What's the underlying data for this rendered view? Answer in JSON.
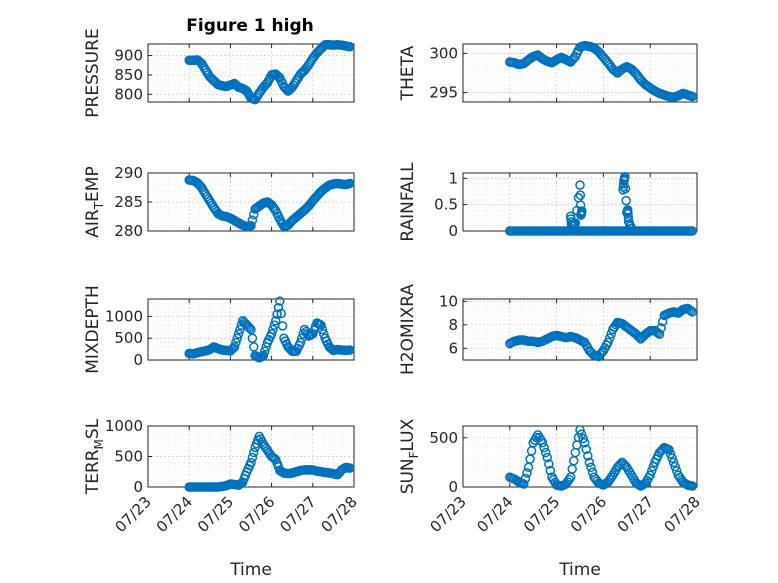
{
  "figure": {
    "title": "Figure 1 high"
  },
  "chart_data": [
    {
      "type": "scatter",
      "ylabel": "PRESSURE",
      "xlim": [
        "07/23",
        "07/28"
      ],
      "ylim": [
        780,
        930
      ],
      "yticks": [
        800,
        850,
        900
      ],
      "color": "#0072BD",
      "x_days": [
        1.0,
        1.1,
        1.2,
        1.3,
        1.4,
        1.5,
        1.6,
        1.7,
        1.8,
        1.9,
        2.0,
        2.1,
        2.2,
        2.3,
        2.4,
        2.5,
        2.6,
        2.7,
        2.8,
        2.9,
        3.0,
        3.1,
        3.2,
        3.3,
        3.4,
        3.5,
        3.6,
        3.7,
        3.8,
        3.9,
        4.0,
        4.1,
        4.2,
        4.3,
        4.4,
        4.5,
        4.6,
        4.7,
        4.8,
        4.9
      ],
      "y": [
        888,
        888,
        889,
        880,
        862,
        845,
        835,
        825,
        822,
        820,
        824,
        828,
        818,
        815,
        808,
        790,
        786,
        803,
        818,
        830,
        850,
        852,
        842,
        820,
        808,
        818,
        835,
        852,
        862,
        876,
        893,
        907,
        918,
        928,
        928,
        927,
        928,
        927,
        925,
        923
      ]
    },
    {
      "type": "scatter",
      "ylabel": "THETA",
      "xlim": [
        "07/23",
        "07/28"
      ],
      "ylim": [
        293.8,
        301.2
      ],
      "yticks": [
        295,
        300
      ],
      "color": "#0072BD",
      "x_days": [
        1.0,
        1.1,
        1.2,
        1.3,
        1.4,
        1.5,
        1.6,
        1.7,
        1.8,
        1.9,
        2.0,
        2.1,
        2.2,
        2.3,
        2.4,
        2.5,
        2.6,
        2.7,
        2.8,
        2.9,
        3.0,
        3.1,
        3.2,
        3.3,
        3.4,
        3.5,
        3.6,
        3.7,
        3.8,
        3.9,
        4.0,
        4.1,
        4.2,
        4.3,
        4.4,
        4.5,
        4.6,
        4.7,
        4.8,
        4.9
      ],
      "y": [
        298.9,
        298.8,
        298.6,
        298.7,
        299.2,
        299.6,
        299.8,
        299.3,
        299.0,
        298.8,
        299.2,
        299.5,
        299.2,
        298.9,
        299.6,
        300.8,
        301.0,
        300.9,
        300.7,
        300.2,
        299.5,
        298.8,
        298.0,
        297.5,
        298.0,
        298.3,
        298.0,
        297.4,
        296.6,
        296.0,
        295.6,
        295.2,
        294.9,
        294.7,
        294.5,
        294.4,
        294.6,
        294.9,
        294.7,
        294.5
      ]
    },
    {
      "type": "scatter",
      "ylabel": "AIR_TEMP",
      "ylabel_main": "AIR",
      "ylabel_sub": "T",
      "ylabel_rest": "EMP",
      "xlim": [
        "07/23",
        "07/28"
      ],
      "ylim": [
        280,
        290
      ],
      "yticks": [
        280,
        285,
        290
      ],
      "color": "#0072BD",
      "x_days": [
        1.0,
        1.1,
        1.2,
        1.3,
        1.4,
        1.5,
        1.6,
        1.7,
        1.8,
        1.9,
        2.0,
        2.1,
        2.2,
        2.3,
        2.4,
        2.5,
        2.6,
        2.7,
        2.8,
        2.9,
        3.0,
        3.1,
        3.2,
        3.3,
        3.4,
        3.5,
        3.6,
        3.7,
        3.8,
        3.9,
        4.0,
        4.1,
        4.2,
        4.3,
        4.4,
        4.5,
        4.6,
        4.7,
        4.8,
        4.9
      ],
      "y": [
        288.8,
        288.7,
        288.3,
        287.5,
        286.3,
        285.2,
        284.0,
        283.0,
        282.6,
        282.5,
        282.2,
        281.8,
        281.4,
        281.0,
        280.8,
        280.9,
        283.8,
        284.3,
        284.8,
        285.0,
        284.5,
        283.5,
        282.0,
        280.8,
        281.0,
        281.8,
        282.4,
        283.0,
        283.6,
        284.3,
        285.2,
        286.0,
        286.8,
        287.4,
        287.9,
        288.1,
        288.2,
        288.1,
        288.0,
        288.2
      ]
    },
    {
      "type": "scatter",
      "ylabel": "RAINFALL",
      "xlim": [
        "07/23",
        "07/28"
      ],
      "ylim": [
        0,
        1.1
      ],
      "yticks": [
        0,
        0.5,
        1
      ],
      "yticklabels": [
        "0",
        "0.5",
        "1"
      ],
      "color": "#0072BD",
      "x_days": [
        1.0,
        1.1,
        1.2,
        1.3,
        1.4,
        1.5,
        1.6,
        1.7,
        1.8,
        1.9,
        2.0,
        2.1,
        2.2,
        2.3,
        2.4,
        2.5,
        2.6,
        2.7,
        2.8,
        2.9,
        3.0,
        3.1,
        3.2,
        3.3,
        3.4,
        3.5,
        3.6,
        3.7,
        3.8,
        3.9,
        4.0,
        4.1,
        4.2,
        4.3,
        4.4,
        4.5,
        4.6,
        4.7,
        4.8,
        4.9,
        2.3,
        2.32,
        2.4,
        2.5,
        2.52,
        2.54,
        3.42,
        3.44,
        3.46,
        3.5,
        3.52,
        3.54,
        3.6
      ],
      "y": [
        0,
        0,
        0,
        0,
        0,
        0,
        0,
        0,
        0,
        0,
        0,
        0,
        0,
        0,
        0,
        0,
        0,
        0,
        0,
        0,
        0,
        0,
        0,
        0,
        0,
        0,
        0,
        0,
        0,
        0,
        0,
        0,
        0,
        0,
        0,
        0,
        0,
        0,
        0,
        0,
        0.28,
        0.12,
        0.15,
        0.87,
        0.3,
        0.38,
        0.78,
        0.95,
        1.03,
        0.35,
        0.4,
        0.18,
        0.05
      ]
    },
    {
      "type": "scatter",
      "ylabel": "MIXDEPTH",
      "xlim": [
        "07/23",
        "07/28"
      ],
      "ylim": [
        0,
        1400
      ],
      "yticks": [
        0,
        500,
        1000
      ],
      "color": "#0072BD",
      "x_days": [
        1.0,
        1.1,
        1.2,
        1.3,
        1.4,
        1.5,
        1.6,
        1.7,
        1.8,
        1.9,
        2.0,
        2.1,
        2.2,
        2.3,
        2.4,
        2.5,
        2.6,
        2.7,
        2.8,
        2.9,
        3.0,
        3.1,
        3.2,
        3.3,
        3.4,
        3.5,
        3.6,
        3.7,
        3.8,
        3.9,
        4.0,
        4.1,
        4.2,
        4.3,
        4.4,
        4.5,
        4.6,
        4.7,
        4.8,
        4.9
      ],
      "y": [
        150,
        140,
        170,
        190,
        210,
        240,
        300,
        260,
        230,
        220,
        210,
        300,
        600,
        900,
        800,
        700,
        100,
        50,
        100,
        400,
        600,
        900,
        1350,
        500,
        300,
        200,
        200,
        400,
        700,
        550,
        600,
        850,
        800,
        500,
        300,
        220,
        240,
        230,
        220,
        230
      ]
    },
    {
      "type": "scatter",
      "ylabel": "H2OMIXRA",
      "xlim": [
        "07/23",
        "07/28"
      ],
      "ylim": [
        5,
        10.2
      ],
      "yticks": [
        6,
        8,
        10
      ],
      "color": "#0072BD",
      "x_days": [
        1.0,
        1.1,
        1.2,
        1.3,
        1.4,
        1.5,
        1.6,
        1.7,
        1.8,
        1.9,
        2.0,
        2.1,
        2.2,
        2.3,
        2.4,
        2.5,
        2.6,
        2.7,
        2.8,
        2.9,
        3.0,
        3.1,
        3.2,
        3.3,
        3.4,
        3.5,
        3.6,
        3.7,
        3.8,
        3.9,
        4.0,
        4.1,
        4.2,
        4.3,
        4.4,
        4.5,
        4.6,
        4.7,
        4.8,
        4.9
      ],
      "y": [
        6.4,
        6.6,
        6.7,
        6.7,
        6.6,
        6.6,
        6.5,
        6.6,
        6.8,
        7.0,
        7.1,
        7.0,
        6.9,
        7.0,
        6.9,
        6.7,
        6.5,
        5.8,
        5.4,
        5.3,
        5.8,
        6.5,
        7.6,
        8.2,
        8.1,
        7.8,
        7.5,
        7.2,
        6.8,
        7.2,
        7.5,
        7.5,
        7.2,
        8.8,
        9.0,
        9.1,
        9.0,
        9.3,
        9.4,
        9.1
      ]
    },
    {
      "type": "scatter",
      "ylabel": "TERR_MSL",
      "ylabel_main": "TERR",
      "ylabel_sub": "M",
      "ylabel_rest": "SL",
      "xlim": [
        "07/23",
        "07/28"
      ],
      "ylim": [
        0,
        1000
      ],
      "yticks": [
        0,
        500,
        1000
      ],
      "xticklabels": [
        "07/23",
        "07/24",
        "07/25",
        "07/26",
        "07/27",
        "07/28"
      ],
      "xlabel": "Time",
      "color": "#0072BD",
      "x_days": [
        1.0,
        1.1,
        1.2,
        1.3,
        1.4,
        1.5,
        1.6,
        1.7,
        1.8,
        1.9,
        2.0,
        2.1,
        2.2,
        2.3,
        2.4,
        2.5,
        2.6,
        2.7,
        2.8,
        2.9,
        3.0,
        3.1,
        3.2,
        3.3,
        3.4,
        3.5,
        3.6,
        3.7,
        3.8,
        3.9,
        4.0,
        4.1,
        4.2,
        4.3,
        4.4,
        4.5,
        4.6,
        4.7,
        4.8,
        4.9
      ],
      "y": [
        0,
        0,
        0,
        0,
        0,
        0,
        0,
        0,
        10,
        20,
        50,
        40,
        30,
        80,
        250,
        400,
        650,
        830,
        700,
        600,
        500,
        450,
        270,
        230,
        220,
        230,
        250,
        270,
        280,
        280,
        280,
        260,
        250,
        240,
        230,
        220,
        200,
        280,
        320,
        310
      ]
    },
    {
      "type": "scatter",
      "ylabel": "SUN_FLUX",
      "ylabel_main": "SUN",
      "ylabel_sub": "F",
      "ylabel_rest": "LUX",
      "xlim": [
        "07/23",
        "07/28"
      ],
      "ylim": [
        0,
        620
      ],
      "yticks": [
        0,
        500
      ],
      "xticklabels": [
        "07/23",
        "07/24",
        "07/25",
        "07/26",
        "07/27",
        "07/28"
      ],
      "xlabel": "Time",
      "color": "#0072BD",
      "x_days": [
        1.0,
        1.1,
        1.2,
        1.3,
        1.4,
        1.5,
        1.6,
        1.7,
        1.8,
        1.9,
        2.0,
        2.1,
        2.2,
        2.3,
        2.4,
        2.5,
        2.6,
        2.7,
        2.8,
        2.9,
        3.0,
        3.1,
        3.2,
        3.3,
        3.4,
        3.5,
        3.6,
        3.7,
        3.8,
        3.9,
        4.0,
        4.1,
        4.2,
        4.3,
        4.4,
        4.5,
        4.6,
        4.7,
        4.8,
        4.9
      ],
      "y": [
        100,
        80,
        50,
        30,
        200,
        450,
        530,
        450,
        300,
        100,
        20,
        10,
        30,
        100,
        350,
        580,
        450,
        250,
        100,
        40,
        20,
        50,
        120,
        200,
        250,
        200,
        120,
        40,
        10,
        40,
        120,
        250,
        350,
        400,
        380,
        250,
        120,
        50,
        20,
        10
      ]
    }
  ]
}
